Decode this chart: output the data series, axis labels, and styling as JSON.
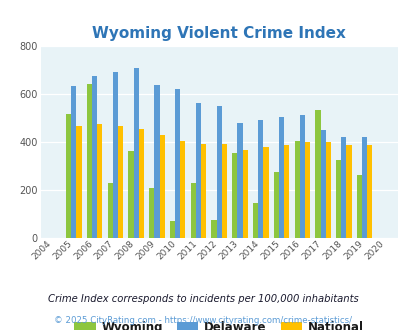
{
  "title": "Wyoming Violent Crime Index",
  "years": [
    "2004",
    "2005",
    "2006",
    "2007",
    "2008",
    "2009",
    "2010",
    "2011",
    "2012",
    "2013",
    "2014",
    "2015",
    "2016",
    "2017",
    "2018",
    "2019",
    "2020"
  ],
  "wyoming": [
    0,
    515,
    640,
    228,
    362,
    207,
    68,
    228,
    75,
    355,
    143,
    275,
    403,
    533,
    325,
    260,
    0
  ],
  "delaware": [
    0,
    632,
    675,
    692,
    708,
    638,
    622,
    563,
    548,
    480,
    492,
    502,
    512,
    450,
    420,
    422,
    0
  ],
  "national": [
    0,
    466,
    473,
    465,
    452,
    428,
    403,
    390,
    390,
    368,
    379,
    386,
    400,
    400,
    385,
    387,
    0
  ],
  "has_data": [
    0,
    1,
    1,
    1,
    1,
    1,
    1,
    1,
    1,
    1,
    1,
    1,
    1,
    1,
    1,
    1,
    0
  ],
  "wyoming_color": "#8dc63f",
  "delaware_color": "#5b9bd5",
  "national_color": "#ffc000",
  "bg_color": "#e8f3f7",
  "ylim": [
    0,
    800
  ],
  "yticks": [
    0,
    200,
    400,
    600,
    800
  ],
  "bar_width": 0.25,
  "subtitle": "Crime Index corresponds to incidents per 100,000 inhabitants",
  "footer": "© 2025 CityRating.com - https://www.cityrating.com/crime-statistics/",
  "legend_labels": [
    "Wyoming",
    "Delaware",
    "National"
  ],
  "title_color": "#2e75b6",
  "subtitle_color": "#1a1a2e",
  "footer_color": "#5b9bd5"
}
